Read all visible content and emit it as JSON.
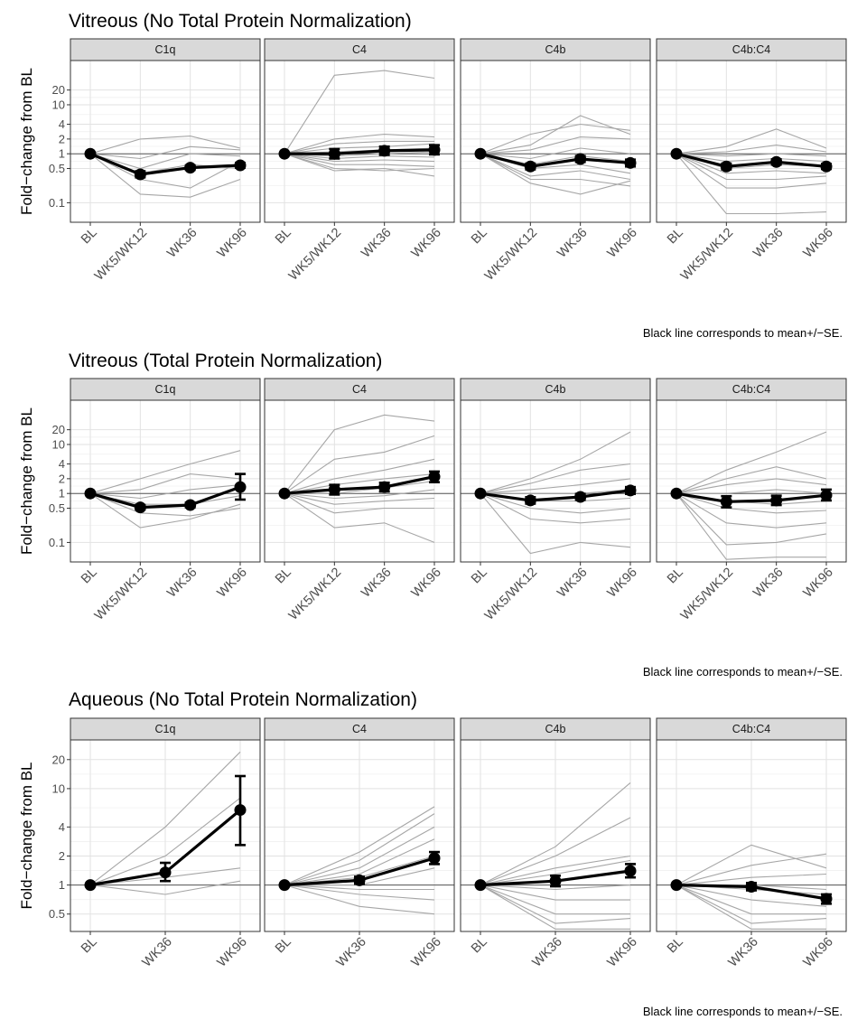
{
  "figure": {
    "caption": "Black line corresponds to mean+/−SE.",
    "y_axis_label": "Fold−change from BL"
  },
  "chart_data": [
    {
      "type": "line",
      "title": "Vitreous (No Total Protein Normalization)",
      "ylabel": "Fold−change from BL",
      "y_scale": "log",
      "ylim": [
        0.04,
        80
      ],
      "y_ticks": [
        0.1,
        0.5,
        1,
        2,
        4,
        10,
        20
      ],
      "y_tick_labels": [
        "0.1",
        "0.5",
        "1",
        "2",
        "4",
        "10",
        "20"
      ],
      "x_categories": [
        "BL",
        "WK5/WK12",
        "WK36",
        "WK96"
      ],
      "reference_line": 1,
      "grid": true,
      "caption": "Black line corresponds to mean+/−SE.",
      "panels": [
        {
          "label": "C1q",
          "mean": [
            1,
            0.38,
            0.52,
            0.58
          ],
          "se_low": [
            1,
            0.33,
            0.47,
            0.52
          ],
          "se_high": [
            1,
            0.44,
            0.58,
            0.65
          ],
          "individual": [
            [
              1,
              2.0,
              2.3,
              1.3
            ],
            [
              1,
              0.8,
              1.4,
              1.2
            ],
            [
              1,
              0.5,
              1.0,
              0.9
            ],
            [
              1,
              0.3,
              0.2,
              0.7
            ],
            [
              1,
              0.15,
              0.13,
              0.3
            ],
            [
              1,
              0.4,
              0.6,
              0.5
            ]
          ]
        },
        {
          "label": "C4",
          "mean": [
            1,
            1.0,
            1.15,
            1.2
          ],
          "se_low": [
            1,
            0.8,
            0.95,
            0.97
          ],
          "se_high": [
            1,
            1.25,
            1.4,
            1.5
          ],
          "individual": [
            [
              1,
              40,
              50,
              35
            ],
            [
              1,
              2.0,
              2.5,
              2.2
            ],
            [
              1,
              1.6,
              1.8,
              1.8
            ],
            [
              1,
              1.3,
              1.4,
              1.6
            ],
            [
              1,
              1.1,
              1.2,
              1.3
            ],
            [
              1,
              0.9,
              1.0,
              1.1
            ],
            [
              1,
              0.8,
              0.9,
              0.85
            ],
            [
              1,
              0.7,
              0.75,
              0.7
            ],
            [
              1,
              0.6,
              0.6,
              0.55
            ],
            [
              1,
              0.5,
              0.45,
              0.5
            ],
            [
              1,
              0.45,
              0.5,
              0.35
            ]
          ]
        },
        {
          "label": "C4b",
          "mean": [
            1,
            0.55,
            0.78,
            0.65
          ],
          "se_low": [
            1,
            0.48,
            0.68,
            0.55
          ],
          "se_high": [
            1,
            0.63,
            0.9,
            0.76
          ],
          "individual": [
            [
              1,
              1.5,
              6.0,
              2.5
            ],
            [
              1,
              2.5,
              4.0,
              3.0
            ],
            [
              1,
              1.2,
              2.2,
              2.0
            ],
            [
              1,
              0.8,
              1.3,
              1.0
            ],
            [
              1,
              0.6,
              0.9,
              0.7
            ],
            [
              1,
              0.5,
              0.6,
              0.4
            ],
            [
              1,
              0.35,
              0.45,
              0.3
            ],
            [
              1,
              0.3,
              0.3,
              0.22
            ],
            [
              1,
              0.25,
              0.15,
              0.28
            ]
          ]
        },
        {
          "label": "C4b:C4",
          "mean": [
            1,
            0.55,
            0.68,
            0.55
          ],
          "se_low": [
            1,
            0.48,
            0.6,
            0.49
          ],
          "se_high": [
            1,
            0.63,
            0.77,
            0.62
          ],
          "individual": [
            [
              1,
              1.4,
              3.2,
              1.3
            ],
            [
              1,
              1.1,
              1.5,
              1.1
            ],
            [
              1,
              0.9,
              1.0,
              0.9
            ],
            [
              1,
              0.7,
              0.8,
              0.7
            ],
            [
              1,
              0.5,
              0.6,
              0.55
            ],
            [
              1,
              0.4,
              0.45,
              0.4
            ],
            [
              1,
              0.3,
              0.3,
              0.35
            ],
            [
              1,
              0.2,
              0.2,
              0.25
            ],
            [
              1,
              0.06,
              0.06,
              0.065
            ]
          ]
        }
      ]
    },
    {
      "type": "line",
      "title": "Vitreous (Total Protein Normalization)",
      "ylabel": "Fold−change from BL",
      "y_scale": "log",
      "ylim": [
        0.04,
        80
      ],
      "y_ticks": [
        0.1,
        0.5,
        1,
        2,
        4,
        10,
        20
      ],
      "y_tick_labels": [
        "0.1",
        "0.5",
        "1",
        "2",
        "4",
        "10",
        "20"
      ],
      "x_categories": [
        "BL",
        "WK5/WK12",
        "WK36",
        "WK96"
      ],
      "reference_line": 1,
      "grid": true,
      "caption": "Black line corresponds to mean+/−SE.",
      "panels": [
        {
          "label": "C1q",
          "mean": [
            1,
            0.52,
            0.58,
            1.35
          ],
          "se_low": [
            1,
            0.47,
            0.52,
            0.75
          ],
          "se_high": [
            1,
            0.58,
            0.65,
            2.5
          ],
          "individual": [
            [
              1,
              2.0,
              4.0,
              7.5
            ],
            [
              1,
              1.2,
              2.5,
              2.0
            ],
            [
              1,
              0.8,
              1.2,
              1.5
            ],
            [
              1,
              0.6,
              0.6,
              0.9
            ],
            [
              1,
              0.4,
              0.35,
              0.5
            ],
            [
              1,
              0.2,
              0.3,
              0.6
            ]
          ]
        },
        {
          "label": "C4",
          "mean": [
            1,
            1.2,
            1.35,
            2.2
          ],
          "se_low": [
            1,
            0.95,
            1.1,
            1.7
          ],
          "se_high": [
            1,
            1.5,
            1.65,
            2.8
          ],
          "individual": [
            [
              1,
              20,
              40,
              30
            ],
            [
              1,
              5.0,
              7.0,
              15
            ],
            [
              1,
              2.0,
              3.0,
              5.0
            ],
            [
              1,
              1.5,
              2.0,
              2.5
            ],
            [
              1,
              1.0,
              1.3,
              1.8
            ],
            [
              1,
              0.8,
              0.9,
              1.2
            ],
            [
              1,
              0.6,
              0.7,
              0.8
            ],
            [
              1,
              0.4,
              0.5,
              0.5
            ],
            [
              1,
              0.2,
              0.25,
              0.1
            ]
          ]
        },
        {
          "label": "C4b",
          "mean": [
            1,
            0.72,
            0.85,
            1.15
          ],
          "se_low": [
            1,
            0.62,
            0.74,
            0.98
          ],
          "se_high": [
            1,
            0.84,
            0.98,
            1.35
          ],
          "individual": [
            [
              1,
              2.0,
              5.0,
              18
            ],
            [
              1,
              1.6,
              3.0,
              4.0
            ],
            [
              1,
              1.2,
              1.5,
              2.0
            ],
            [
              1,
              1.0,
              1.0,
              1.2
            ],
            [
              1,
              0.7,
              0.7,
              0.8
            ],
            [
              1,
              0.5,
              0.4,
              0.5
            ],
            [
              1,
              0.3,
              0.25,
              0.3
            ],
            [
              1,
              0.06,
              0.1,
              0.08
            ]
          ]
        },
        {
          "label": "C4b:C4",
          "mean": [
            1,
            0.68,
            0.72,
            0.92
          ],
          "se_low": [
            1,
            0.52,
            0.58,
            0.72
          ],
          "se_high": [
            1,
            0.88,
            0.9,
            1.2
          ],
          "individual": [
            [
              1,
              3.0,
              7.0,
              18
            ],
            [
              1,
              2.0,
              3.5,
              2.0
            ],
            [
              1,
              1.5,
              2.0,
              1.5
            ],
            [
              1,
              1.0,
              1.2,
              1.0
            ],
            [
              1,
              0.7,
              0.6,
              0.7
            ],
            [
              1,
              0.5,
              0.4,
              0.45
            ],
            [
              1,
              0.25,
              0.2,
              0.25
            ],
            [
              1,
              0.09,
              0.1,
              0.15
            ],
            [
              1,
              0.045,
              0.05,
              0.05
            ]
          ]
        }
      ]
    },
    {
      "type": "line",
      "title": "Aqueous (No Total Protein Normalization)",
      "ylabel": "Fold−change from BL",
      "y_scale": "log",
      "ylim": [
        0.33,
        32
      ],
      "y_ticks": [
        0.5,
        1,
        2,
        4,
        10,
        20
      ],
      "y_tick_labels": [
        "0.5",
        "1",
        "2",
        "4",
        "10",
        "20"
      ],
      "x_categories": [
        "BL",
        "WK36",
        "WK96"
      ],
      "reference_line": 1,
      "grid": true,
      "caption": "Black line corresponds to mean+/−SE.",
      "panels": [
        {
          "label": "C1q",
          "mean": [
            1,
            1.35,
            6.0
          ],
          "se_low": [
            1,
            1.1,
            2.6
          ],
          "se_high": [
            1,
            1.7,
            13.5
          ],
          "individual": [
            [
              1,
              4.0,
              24
            ],
            [
              1,
              2.0,
              8.0
            ],
            [
              1,
              1.2,
              1.5
            ],
            [
              1,
              0.8,
              1.1
            ]
          ]
        },
        {
          "label": "C4",
          "mean": [
            1,
            1.12,
            1.9
          ],
          "se_low": [
            1,
            1.03,
            1.65
          ],
          "se_high": [
            1,
            1.22,
            2.2
          ],
          "individual": [
            [
              1,
              2.2,
              6.5
            ],
            [
              1,
              1.8,
              5.5
            ],
            [
              1,
              1.5,
              4.0
            ],
            [
              1,
              1.3,
              3.0
            ],
            [
              1,
              1.2,
              2.0
            ],
            [
              1,
              1.0,
              1.5
            ],
            [
              1,
              0.9,
              0.9
            ],
            [
              1,
              0.8,
              0.7
            ],
            [
              1,
              0.6,
              0.5
            ]
          ]
        },
        {
          "label": "C4b",
          "mean": [
            1,
            1.1,
            1.4
          ],
          "se_low": [
            1,
            0.97,
            1.2
          ],
          "se_high": [
            1,
            1.25,
            1.65
          ],
          "individual": [
            [
              1,
              2.5,
              11.5
            ],
            [
              1,
              2.0,
              5.0
            ],
            [
              1,
              1.5,
              2.0
            ],
            [
              1,
              1.3,
              1.8
            ],
            [
              1,
              1.1,
              1.4
            ],
            [
              1,
              0.9,
              1.0
            ],
            [
              1,
              0.7,
              0.7
            ],
            [
              1,
              0.5,
              0.5
            ],
            [
              1,
              0.4,
              0.45
            ],
            [
              1,
              0.35,
              0.35
            ]
          ]
        },
        {
          "label": "C4b:C4",
          "mean": [
            1,
            0.96,
            0.72
          ],
          "se_low": [
            1,
            0.88,
            0.64
          ],
          "se_high": [
            1,
            1.05,
            0.8
          ],
          "individual": [
            [
              1,
              2.6,
              1.5
            ],
            [
              1,
              1.6,
              2.1
            ],
            [
              1,
              1.2,
              1.3
            ],
            [
              1,
              1.0,
              0.9
            ],
            [
              1,
              0.9,
              0.8
            ],
            [
              1,
              0.7,
              0.6
            ],
            [
              1,
              0.5,
              0.5
            ],
            [
              1,
              0.4,
              0.45
            ],
            [
              1,
              0.35,
              0.35
            ]
          ]
        }
      ]
    }
  ]
}
